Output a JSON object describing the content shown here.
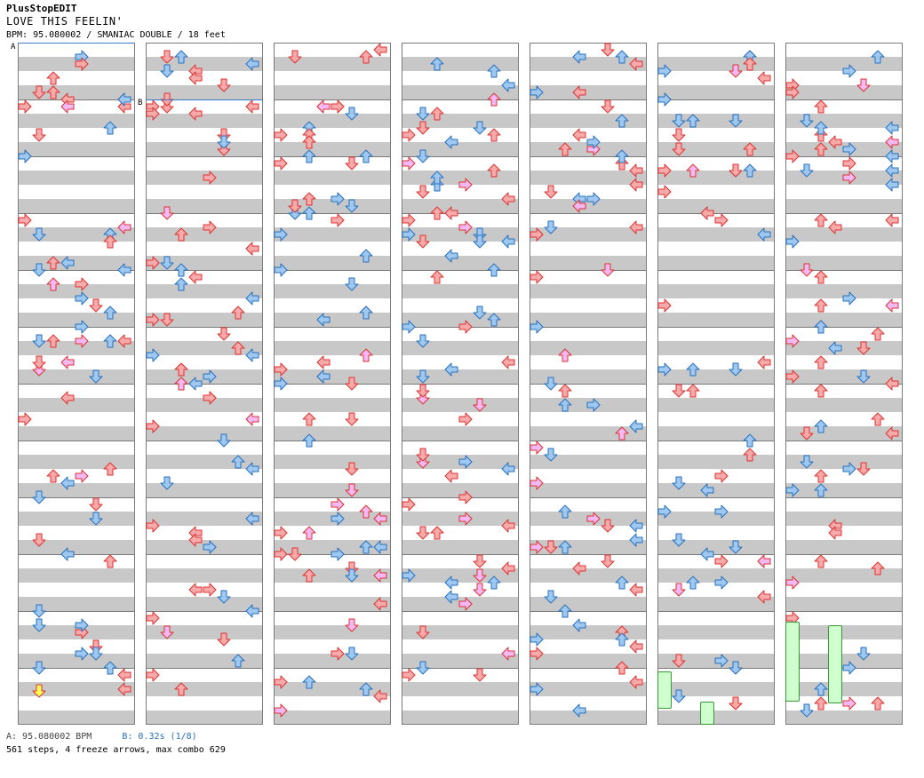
{
  "header": {
    "app": "PlusStopEDIT",
    "title": "LOVE THIS FEELIN'",
    "meta": "BPM: 95.080002 / SMANIAC DOUBLE / 18 feet"
  },
  "markers": {
    "a": "A",
    "b": "B"
  },
  "footer": {
    "bpm_line": "A: 95.080002 BPM",
    "stop_line": "B: 0.32s (1/8)",
    "stats": "561 steps, 4 freeze arrows, max combo 629"
  },
  "chart_info": {
    "columns": 7,
    "measures_per_column": 12,
    "step_lanes": 8
  },
  "colors": {
    "quarter": "#f8aaaa",
    "eighth": "#9ec8f0",
    "sixteenth": "#f4b8f4",
    "freeze": "#cfffcf",
    "stop": "#ffff55"
  }
}
